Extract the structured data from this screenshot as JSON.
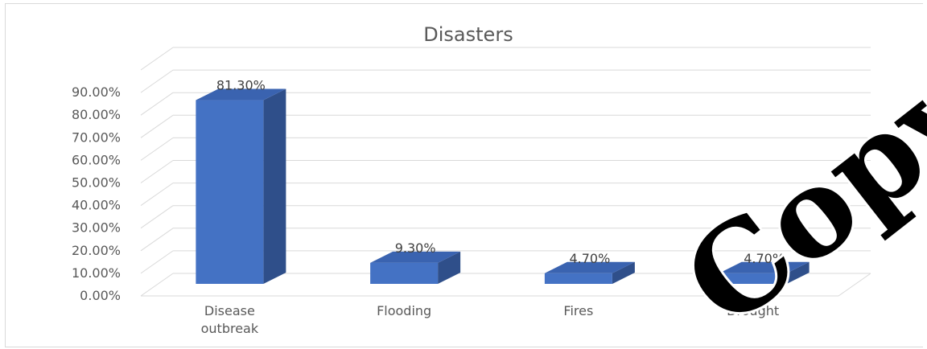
{
  "chart_data": {
    "type": "bar",
    "title": "Disasters",
    "categories": [
      "Disease outbreak",
      "Flooding",
      "Fires",
      "Drought"
    ],
    "category_lines": [
      [
        "Disease",
        "outbreak"
      ],
      [
        "Flooding"
      ],
      [
        "Fires"
      ],
      [
        "Drought"
      ]
    ],
    "values": [
      81.3,
      9.3,
      4.7,
      4.7
    ],
    "data_labels": [
      "81.30%",
      "9.30%",
      "4.70%",
      "4.70%"
    ],
    "yticks": [
      "0.00%",
      "10.00%",
      "20.00%",
      "30.00%",
      "40.00%",
      "50.00%",
      "60.00%",
      "70.00%",
      "80.00%",
      "90.00%"
    ],
    "ylim": [
      0,
      100
    ],
    "grid": true,
    "style": "3d-column",
    "colors": {
      "bar_front": "#4472C4",
      "bar_side": "#2F4F8A",
      "bar_top": "#3A63B0",
      "grid": "#d9d9d9",
      "text": "#595959"
    }
  },
  "watermark": {
    "text": "Copy"
  }
}
